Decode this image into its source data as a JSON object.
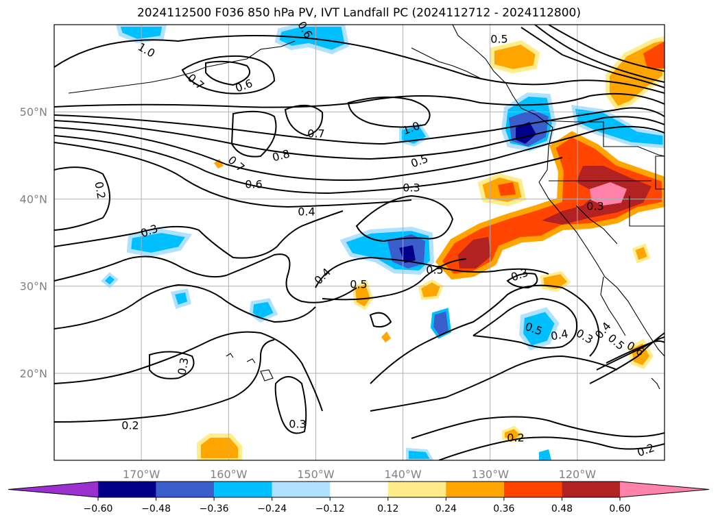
{
  "title": "2024112500 F036 850 hPa PV, IVT Landfall PC (2024112712 - 2024112800)",
  "map": {
    "extent": {
      "lon_min": -180,
      "lon_max": -110,
      "lat_min": 10,
      "lat_max": 60
    },
    "lat_ticks": [
      {
        "value": 20,
        "label": "20°N"
      },
      {
        "value": 30,
        "label": "30°N"
      },
      {
        "value": 40,
        "label": "40°N"
      },
      {
        "value": 50,
        "label": "50°N"
      }
    ],
    "lon_ticks": [
      {
        "value": -170,
        "label": "170°W"
      },
      {
        "value": -160,
        "label": "160°W"
      },
      {
        "value": -150,
        "label": "150°W"
      },
      {
        "value": -140,
        "label": "140°W"
      },
      {
        "value": -130,
        "label": "130°W"
      },
      {
        "value": -120,
        "label": "120°W"
      }
    ],
    "gridlines": true,
    "contour_labels": [
      "1.0",
      "0.7",
      "0.6",
      "0.6",
      "0.5",
      "1.0",
      "0.7",
      "0.8",
      "0.7",
      "0.6",
      "0.5",
      "0.3",
      "0.4",
      "0.2",
      "0.3",
      "0.3",
      "0.5",
      "0.4",
      "0.5",
      "0.3",
      "0.5",
      "0.4",
      "0.3",
      "0.4",
      "0.5",
      "0.6",
      "0.3",
      "0.2",
      "0.3",
      "0.2",
      "0.2"
    ]
  },
  "colorbar": {
    "ticks": [
      "−0.60",
      "−0.48",
      "−0.36",
      "−0.24",
      "−0.12",
      "0.12",
      "0.24",
      "0.36",
      "0.48",
      "0.60"
    ],
    "colors": [
      "#9b30d0",
      "#00008b",
      "#3a5fcd",
      "#00bfff",
      "#b0e2ff",
      "#ffffff",
      "#ffec8b",
      "#ffa500",
      "#ff4500",
      "#b22222",
      "#ff82ab"
    ],
    "extend": "both"
  }
}
